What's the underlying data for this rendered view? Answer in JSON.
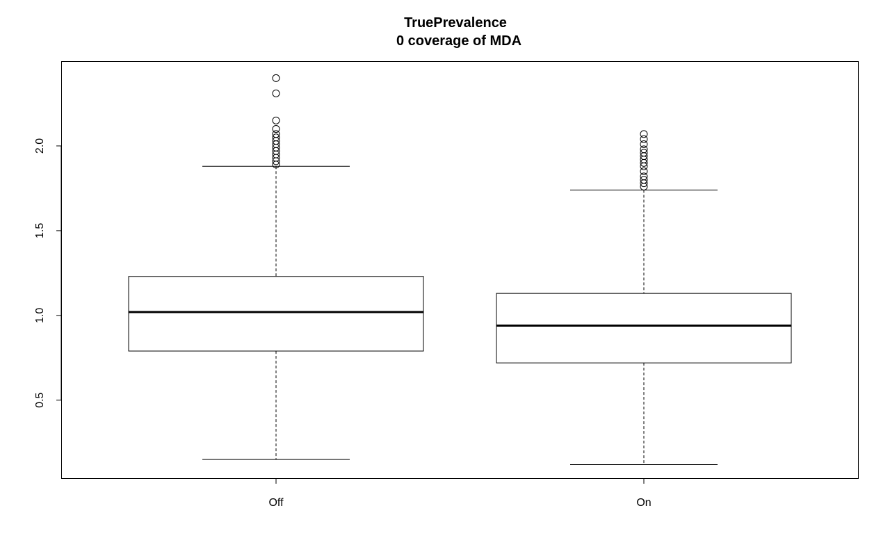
{
  "chart_data": {
    "type": "boxplot",
    "title": "TruePrevalence",
    "subtitle": "0 coverage of MDA",
    "xlabel": "",
    "ylabel": "",
    "categories": [
      "Off",
      "On"
    ],
    "yticks": [
      "0.5",
      "1.0",
      "1.5",
      "2.0"
    ],
    "ylim": [
      0.04,
      2.5
    ],
    "grid": false,
    "legend": "none",
    "boxes": [
      {
        "category": "Off",
        "whisker_low": 0.15,
        "q1": 0.79,
        "median": 1.02,
        "q3": 1.23,
        "whisker_high": 1.88,
        "outliers": [
          1.89,
          1.91,
          1.93,
          1.95,
          1.97,
          1.99,
          2.01,
          2.03,
          2.05,
          2.07,
          2.1,
          2.15,
          2.31,
          2.4
        ]
      },
      {
        "category": "On",
        "whisker_low": 0.12,
        "q1": 0.72,
        "median": 0.94,
        "q3": 1.13,
        "whisker_high": 1.74,
        "outliers": [
          1.76,
          1.78,
          1.8,
          1.82,
          1.85,
          1.88,
          1.9,
          1.92,
          1.94,
          1.96,
          1.98,
          2.01,
          2.04,
          2.07
        ]
      }
    ]
  }
}
